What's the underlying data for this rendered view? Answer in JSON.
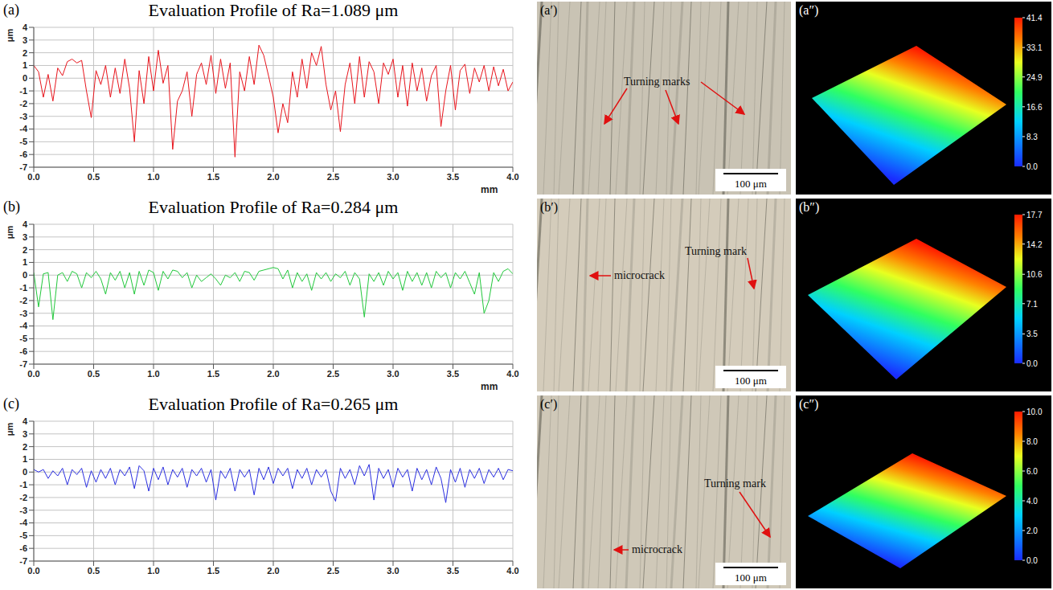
{
  "chart_data": [
    {
      "type": "line",
      "panel": "(a)",
      "title": "Evaluation Profile of Ra=1.089 μm",
      "xlabel": "mm",
      "ylabel": "μm",
      "color": "#e8141c",
      "grid": true,
      "xlim": [
        0,
        4
      ],
      "ylim": [
        -7,
        4
      ],
      "xticks": [
        {
          "value": 0,
          "label": "0.0"
        },
        {
          "value": 0.5,
          "label": "0.5"
        },
        {
          "value": 1,
          "label": "1.0"
        },
        {
          "value": 1.5,
          "label": "1.5"
        },
        {
          "value": 2,
          "label": "2.0"
        },
        {
          "value": 2.5,
          "label": "2.5"
        },
        {
          "value": 3,
          "label": "3.0"
        },
        {
          "value": 3.5,
          "label": "3.5"
        },
        {
          "value": 4,
          "label": "4.0"
        }
      ],
      "yticks": [
        4,
        3,
        2,
        1,
        0,
        -1,
        -2,
        -3,
        -4,
        -5,
        -6,
        -7
      ],
      "x": [
        0,
        0.04,
        0.08,
        0.12,
        0.16,
        0.2,
        0.24,
        0.28,
        0.32,
        0.36,
        0.4,
        0.44,
        0.48,
        0.52,
        0.56,
        0.6,
        0.64,
        0.68,
        0.72,
        0.76,
        0.8,
        0.84,
        0.88,
        0.92,
        0.96,
        1,
        1.04,
        1.08,
        1.12,
        1.16,
        1.2,
        1.24,
        1.28,
        1.32,
        1.36,
        1.4,
        1.44,
        1.48,
        1.52,
        1.56,
        1.6,
        1.64,
        1.68,
        1.72,
        1.76,
        1.8,
        1.84,
        1.88,
        1.92,
        1.96,
        2,
        2.04,
        2.08,
        2.12,
        2.16,
        2.2,
        2.24,
        2.28,
        2.32,
        2.36,
        2.4,
        2.44,
        2.48,
        2.52,
        2.56,
        2.6,
        2.64,
        2.68,
        2.72,
        2.76,
        2.8,
        2.84,
        2.88,
        2.92,
        2.96,
        3,
        3.04,
        3.08,
        3.12,
        3.16,
        3.2,
        3.24,
        3.28,
        3.32,
        3.36,
        3.4,
        3.44,
        3.48,
        3.52,
        3.56,
        3.6,
        3.64,
        3.68,
        3.72,
        3.76,
        3.8,
        3.84,
        3.88,
        3.92,
        3.96,
        4
      ],
      "values": [
        1.0,
        0.5,
        -1.5,
        0.3,
        -1.8,
        0.8,
        0.2,
        1.3,
        1.5,
        1.2,
        1.4,
        -1.0,
        -3.1,
        0.6,
        -0.5,
        1.0,
        -1.5,
        0.8,
        -1.2,
        1.5,
        -0.8,
        -5.0,
        0.6,
        -2.0,
        1.7,
        -1.0,
        2.2,
        -0.4,
        1.0,
        -5.6,
        -1.8,
        -1.0,
        0.5,
        -3.0,
        0.3,
        1.2,
        -0.5,
        1.8,
        -1.2,
        1.5,
        -0.8,
        1.2,
        -6.2,
        0.5,
        -1.0,
        1.7,
        -0.5,
        2.6,
        1.8,
        0.2,
        -1.5,
        -4.3,
        -2.0,
        -3.5,
        0.5,
        -1.5,
        1.5,
        -0.8,
        2.0,
        1.0,
        2.5,
        -0.5,
        -2.5,
        -1.0,
        -4.2,
        -0.5,
        1.2,
        -2.0,
        1.7,
        -1.5,
        1.3,
        0.5,
        -2.0,
        1.2,
        0.3,
        1.5,
        -1.5,
        1.0,
        -2.2,
        1.2,
        -1.0,
        0.8,
        -1.8,
        0.2,
        1.0,
        -3.8,
        -1.0,
        1.0,
        -2.5,
        0.6,
        1.1,
        -1.2,
        0.8,
        -0.3,
        1.0,
        -1.0,
        0.9,
        -0.6,
        0.7,
        -1.0,
        -0.3
      ]
    },
    {
      "type": "line",
      "panel": "(b)",
      "title": "Evaluation Profile of Ra=0.284 μm",
      "xlabel": "mm",
      "ylabel": "μm",
      "color": "#22c83c",
      "grid": true,
      "xlim": [
        0,
        4
      ],
      "ylim": [
        -7,
        4
      ],
      "xticks": [
        {
          "value": 0,
          "label": "0.0"
        },
        {
          "value": 0.5,
          "label": "0.5"
        },
        {
          "value": 1,
          "label": "1.0"
        },
        {
          "value": 1.5,
          "label": "1.5"
        },
        {
          "value": 2,
          "label": "2.0"
        },
        {
          "value": 2.5,
          "label": "2.5"
        },
        {
          "value": 3,
          "label": "3.0"
        },
        {
          "value": 3.5,
          "label": "3.5"
        },
        {
          "value": 4,
          "label": "4.0"
        }
      ],
      "yticks": [
        4,
        3,
        2,
        1,
        0,
        -1,
        -2,
        -3,
        -4,
        -5,
        -6,
        -7
      ],
      "x": [
        0,
        0.04,
        0.08,
        0.12,
        0.16,
        0.2,
        0.24,
        0.28,
        0.32,
        0.36,
        0.4,
        0.44,
        0.48,
        0.52,
        0.56,
        0.6,
        0.64,
        0.68,
        0.72,
        0.76,
        0.8,
        0.84,
        0.88,
        0.92,
        0.96,
        1,
        1.04,
        1.08,
        1.12,
        1.16,
        1.2,
        1.24,
        1.28,
        1.32,
        1.36,
        1.4,
        1.44,
        1.48,
        1.52,
        1.56,
        1.6,
        1.64,
        1.68,
        1.72,
        1.76,
        1.8,
        1.84,
        1.88,
        1.92,
        1.96,
        2,
        2.04,
        2.08,
        2.12,
        2.16,
        2.2,
        2.24,
        2.28,
        2.32,
        2.36,
        2.4,
        2.44,
        2.48,
        2.52,
        2.56,
        2.6,
        2.64,
        2.68,
        2.72,
        2.76,
        2.8,
        2.84,
        2.88,
        2.92,
        2.96,
        3,
        3.04,
        3.08,
        3.12,
        3.16,
        3.2,
        3.24,
        3.28,
        3.32,
        3.36,
        3.4,
        3.44,
        3.48,
        3.52,
        3.56,
        3.6,
        3.64,
        3.68,
        3.72,
        3.76,
        3.8,
        3.84,
        3.88,
        3.92,
        3.96,
        4
      ],
      "values": [
        0.2,
        -2.5,
        0.1,
        0.2,
        -3.5,
        0.0,
        0.2,
        -0.5,
        0.3,
        0.1,
        -1.0,
        0.2,
        -0.2,
        0.3,
        -0.3,
        -1.5,
        0.2,
        -0.4,
        0.3,
        -1.0,
        0.2,
        -1.5,
        0.3,
        -0.8,
        0.4,
        0.2,
        -1.2,
        0.3,
        -0.3,
        0.4,
        0.3,
        -0.2,
        0.2,
        -1.0,
        0.0,
        -0.5,
        -0.2,
        0.1,
        -0.3,
        -0.8,
        0.0,
        -0.2,
        0.2,
        -0.5,
        0.3,
        0.2,
        -0.4,
        0.3,
        0.4,
        0.5,
        0.6,
        0.5,
        -0.3,
        0.4,
        -1.0,
        0.2,
        -0.5,
        0.1,
        -1.2,
        0.2,
        -0.3,
        0.2,
        -0.5,
        0.1,
        -0.2,
        0.3,
        -0.8,
        0.2,
        -0.3,
        -3.3,
        0.1,
        -0.5,
        0.2,
        -0.8,
        0.3,
        -0.3,
        0.2,
        -1.2,
        0.3,
        -0.5,
        0.2,
        -0.8,
        0.2,
        -1.0,
        0.3,
        -0.2,
        0.2,
        -1.0,
        0.2,
        -0.3,
        0.3,
        -0.6,
        -1.5,
        0.2,
        -3.0,
        -2.0,
        0.2,
        -0.5,
        0.3,
        0.5,
        0.1
      ]
    },
    {
      "type": "line",
      "panel": "(c)",
      "title": "Evaluation Profile of Ra=0.265 μm",
      "ylabel": "μm",
      "color": "#2a2ee0",
      "grid": true,
      "xlim": [
        0,
        4
      ],
      "ylim": [
        -7,
        4
      ],
      "xticks": [
        {
          "value": 0,
          "label": "0.0"
        },
        {
          "value": 0.5,
          "label": "0.5"
        },
        {
          "value": 1,
          "label": "1.0"
        },
        {
          "value": 1.5,
          "label": "1.5"
        },
        {
          "value": 2,
          "label": "2.0"
        },
        {
          "value": 2.5,
          "label": "2.5"
        },
        {
          "value": 3,
          "label": "3.0"
        },
        {
          "value": 3.5,
          "label": "3.5"
        },
        {
          "value": 4,
          "label": "4.0"
        }
      ],
      "yticks": [
        4,
        3,
        2,
        1,
        0,
        -1,
        -2,
        -3,
        -4,
        -5,
        -6,
        -7
      ],
      "x": [
        0,
        0.04,
        0.08,
        0.12,
        0.16,
        0.2,
        0.24,
        0.28,
        0.32,
        0.36,
        0.4,
        0.44,
        0.48,
        0.52,
        0.56,
        0.6,
        0.64,
        0.68,
        0.72,
        0.76,
        0.8,
        0.84,
        0.88,
        0.92,
        0.96,
        1,
        1.04,
        1.08,
        1.12,
        1.16,
        1.2,
        1.24,
        1.28,
        1.32,
        1.36,
        1.4,
        1.44,
        1.48,
        1.52,
        1.56,
        1.6,
        1.64,
        1.68,
        1.72,
        1.76,
        1.8,
        1.84,
        1.88,
        1.92,
        1.96,
        2,
        2.04,
        2.08,
        2.12,
        2.16,
        2.2,
        2.24,
        2.28,
        2.32,
        2.36,
        2.4,
        2.44,
        2.48,
        2.52,
        2.56,
        2.6,
        2.64,
        2.68,
        2.72,
        2.76,
        2.8,
        2.84,
        2.88,
        2.92,
        2.96,
        3,
        3.04,
        3.08,
        3.12,
        3.16,
        3.2,
        3.24,
        3.28,
        3.32,
        3.36,
        3.4,
        3.44,
        3.48,
        3.52,
        3.56,
        3.6,
        3.64,
        3.68,
        3.72,
        3.76,
        3.8,
        3.84,
        3.88,
        3.92,
        3.96,
        4
      ],
      "values": [
        0.2,
        0.0,
        0.2,
        -0.5,
        0.1,
        -0.3,
        0.3,
        -1.0,
        0.2,
        -0.2,
        0.3,
        -1.2,
        0.1,
        -0.8,
        0.2,
        -0.5,
        0.3,
        -1.0,
        0.2,
        -0.3,
        0.4,
        -1.3,
        0.5,
        0.1,
        -1.5,
        0.3,
        -0.6,
        0.4,
        -1.0,
        0.2,
        -0.4,
        0.3,
        -1.2,
        0.2,
        -0.3,
        0.3,
        -0.8,
        0.2,
        -2.2,
        0.1,
        -0.5,
        0.3,
        -1.5,
        0.2,
        -0.4,
        0.2,
        -1.8,
        0.3,
        -0.6,
        0.4,
        -0.9,
        0.3,
        -0.3,
        0.3,
        -1.3,
        0.2,
        -0.5,
        0.3,
        -1.0,
        0.2,
        -0.4,
        0.2,
        -1.5,
        -2.3,
        0.3,
        -0.5,
        0.2,
        -1.0,
        0.5,
        -0.3,
        0.6,
        -2.2,
        0.3,
        -0.5,
        0.2,
        -1.2,
        0.3,
        -0.4,
        0.2,
        -1.5,
        0.3,
        -0.6,
        0.2,
        -1.0,
        0.4,
        -0.5,
        -2.4,
        0.2,
        -0.8,
        0.3,
        -1.2,
        0.2,
        -0.5,
        0.3,
        -0.9,
        0.2,
        -0.4,
        0.3,
        -0.6,
        0.2,
        0.1
      ]
    }
  ],
  "micrographs": [
    {
      "panel": "(a′)",
      "labels": [
        "Turning marks"
      ],
      "scale_bar": "100 μm"
    },
    {
      "panel": "(b′)",
      "labels": [
        "microcrack",
        "Turning mark"
      ],
      "scale_bar": "100 μm"
    },
    {
      "panel": "(c′)",
      "labels": [
        "microcrack",
        "Turning mark"
      ],
      "scale_bar": "100 μm"
    }
  ],
  "surfaces": [
    {
      "panel": "(a″)",
      "colorbar": {
        "range": [
          0,
          41.4
        ],
        "ticks": [
          {
            "value": 0,
            "label": "0.0"
          },
          {
            "value": 8.3,
            "label": "8.3"
          },
          {
            "value": 16.6,
            "label": "16.6"
          },
          {
            "value": 24.9,
            "label": "24.9"
          },
          {
            "value": 33.1,
            "label": "33.1"
          },
          {
            "value": 41.4,
            "label": "41.4"
          }
        ]
      }
    },
    {
      "panel": "(b″)",
      "colorbar": {
        "range": [
          0,
          17.7
        ],
        "ticks": [
          {
            "value": 0,
            "label": "0.0"
          },
          {
            "value": 3.5,
            "label": "3.5"
          },
          {
            "value": 7.1,
            "label": "7.1"
          },
          {
            "value": 10.6,
            "label": "10.6"
          },
          {
            "value": 14.2,
            "label": "14.2"
          },
          {
            "value": 17.7,
            "label": "17.7"
          }
        ]
      }
    },
    {
      "panel": "(c″)",
      "colorbar": {
        "range": [
          0,
          10
        ],
        "ticks": [
          {
            "value": 0,
            "label": "0.0"
          },
          {
            "value": 2,
            "label": "2.0"
          },
          {
            "value": 4,
            "label": "4.0"
          },
          {
            "value": 6,
            "label": "6.0"
          },
          {
            "value": 8,
            "label": "8.0"
          },
          {
            "value": 10,
            "label": "10.0"
          }
        ]
      }
    }
  ]
}
